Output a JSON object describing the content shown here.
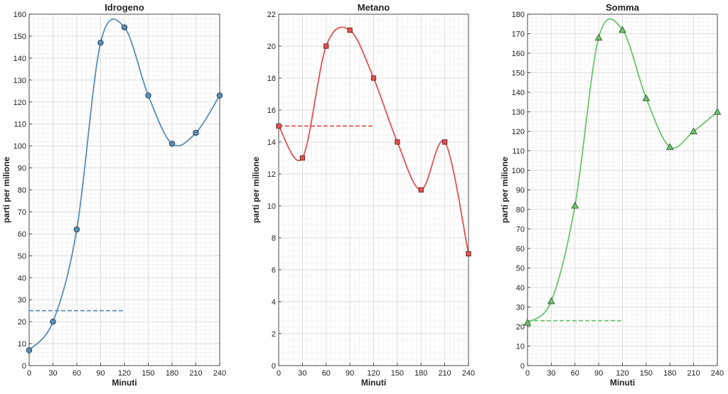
{
  "chart_data": [
    {
      "type": "line",
      "title": "Idrogeno",
      "xlabel": "Minuti",
      "ylabel": "parti per milione",
      "x": [
        0,
        30,
        60,
        90,
        120,
        150,
        180,
        210,
        240
      ],
      "values": [
        7,
        20,
        62,
        147,
        154,
        123,
        101,
        106,
        123
      ],
      "xlim": [
        0,
        240
      ],
      "ylim": [
        0,
        160
      ],
      "xticks": [
        0,
        30,
        60,
        90,
        120,
        150,
        180,
        210,
        240
      ],
      "yticks": [
        0,
        10,
        20,
        30,
        40,
        50,
        60,
        70,
        80,
        90,
        100,
        110,
        120,
        130,
        140,
        150,
        160
      ],
      "reference": {
        "value": 25,
        "x_from": 0,
        "x_to": 120
      },
      "color": "#5a8db5",
      "marker": "circle",
      "grid": true
    },
    {
      "type": "line",
      "title": "Metano",
      "xlabel": "Minuti",
      "ylabel": "parti per milione",
      "x": [
        0,
        30,
        60,
        90,
        120,
        150,
        180,
        210,
        240
      ],
      "values": [
        15,
        13,
        20,
        21,
        18,
        14,
        11,
        14,
        7
      ],
      "xlim": [
        0,
        240
      ],
      "ylim": [
        0,
        22
      ],
      "xticks": [
        0,
        30,
        60,
        90,
        120,
        150,
        180,
        210,
        240
      ],
      "yticks": [
        0,
        2,
        4,
        6,
        8,
        10,
        12,
        14,
        16,
        18,
        20,
        22
      ],
      "reference": {
        "value": 15,
        "x_from": 0,
        "x_to": 120
      },
      "color": "#e05252",
      "marker": "square",
      "grid": true
    },
    {
      "type": "line",
      "title": "Somma",
      "xlabel": "Minuti",
      "ylabel": "parti per milione",
      "x": [
        0,
        30,
        60,
        90,
        120,
        150,
        180,
        210,
        240
      ],
      "values": [
        22,
        33,
        82,
        168,
        172,
        137,
        112,
        120,
        130
      ],
      "xlim": [
        0,
        240
      ],
      "ylim": [
        0,
        180
      ],
      "xticks": [
        0,
        30,
        60,
        90,
        120,
        150,
        180,
        210,
        240
      ],
      "yticks": [
        0,
        10,
        20,
        30,
        40,
        50,
        60,
        70,
        80,
        90,
        100,
        110,
        120,
        130,
        140,
        150,
        160,
        170,
        180
      ],
      "reference": {
        "value": 23,
        "x_from": 0,
        "x_to": 120
      },
      "color": "#6cc46c",
      "marker": "triangle",
      "grid": true
    }
  ]
}
